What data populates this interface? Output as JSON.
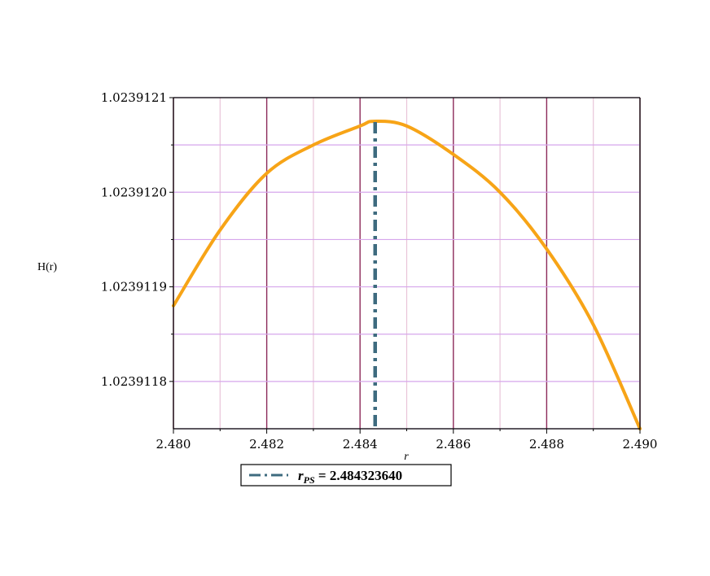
{
  "chart_data": {
    "type": "line",
    "xlabel": "r",
    "ylabel": "H(r)",
    "xlim": [
      2.48,
      2.49
    ],
    "ylim": [
      1.02391175,
      1.0239121
    ],
    "x_ticks": [
      2.48,
      2.482,
      2.484,
      2.486,
      2.488,
      2.49
    ],
    "x_tick_labels": [
      "2.480",
      "2.482",
      "2.484",
      "2.486",
      "2.488",
      "2.490"
    ],
    "y_ticks": [
      1.0239118,
      1.0239119,
      1.023912,
      1.0239121
    ],
    "y_tick_labels": [
      "1.0239118",
      "1.0239119",
      "1.0239120",
      "1.0239121"
    ],
    "grid": true,
    "series": [
      {
        "color": "#f7a417",
        "style": "solid",
        "x": [
          2.48,
          2.481,
          2.482,
          2.483,
          2.484,
          2.4843,
          2.485,
          2.486,
          2.487,
          2.488,
          2.489,
          2.49
        ],
        "y": [
          1.02391188,
          1.02391196,
          1.02391202,
          1.02391205,
          1.02391207,
          1.023912075,
          1.02391207,
          1.02391204,
          1.023912,
          1.02391194,
          1.02391186,
          1.02391175
        ]
      }
    ],
    "vertical_lines": [
      {
        "x": 2.48432364,
        "color": "#3e6b7f",
        "style": "dash-dot"
      }
    ],
    "legend": {
      "placement": "bottom",
      "symbol": "r",
      "subscript": "PS",
      "text": " = 2.484323640"
    }
  }
}
